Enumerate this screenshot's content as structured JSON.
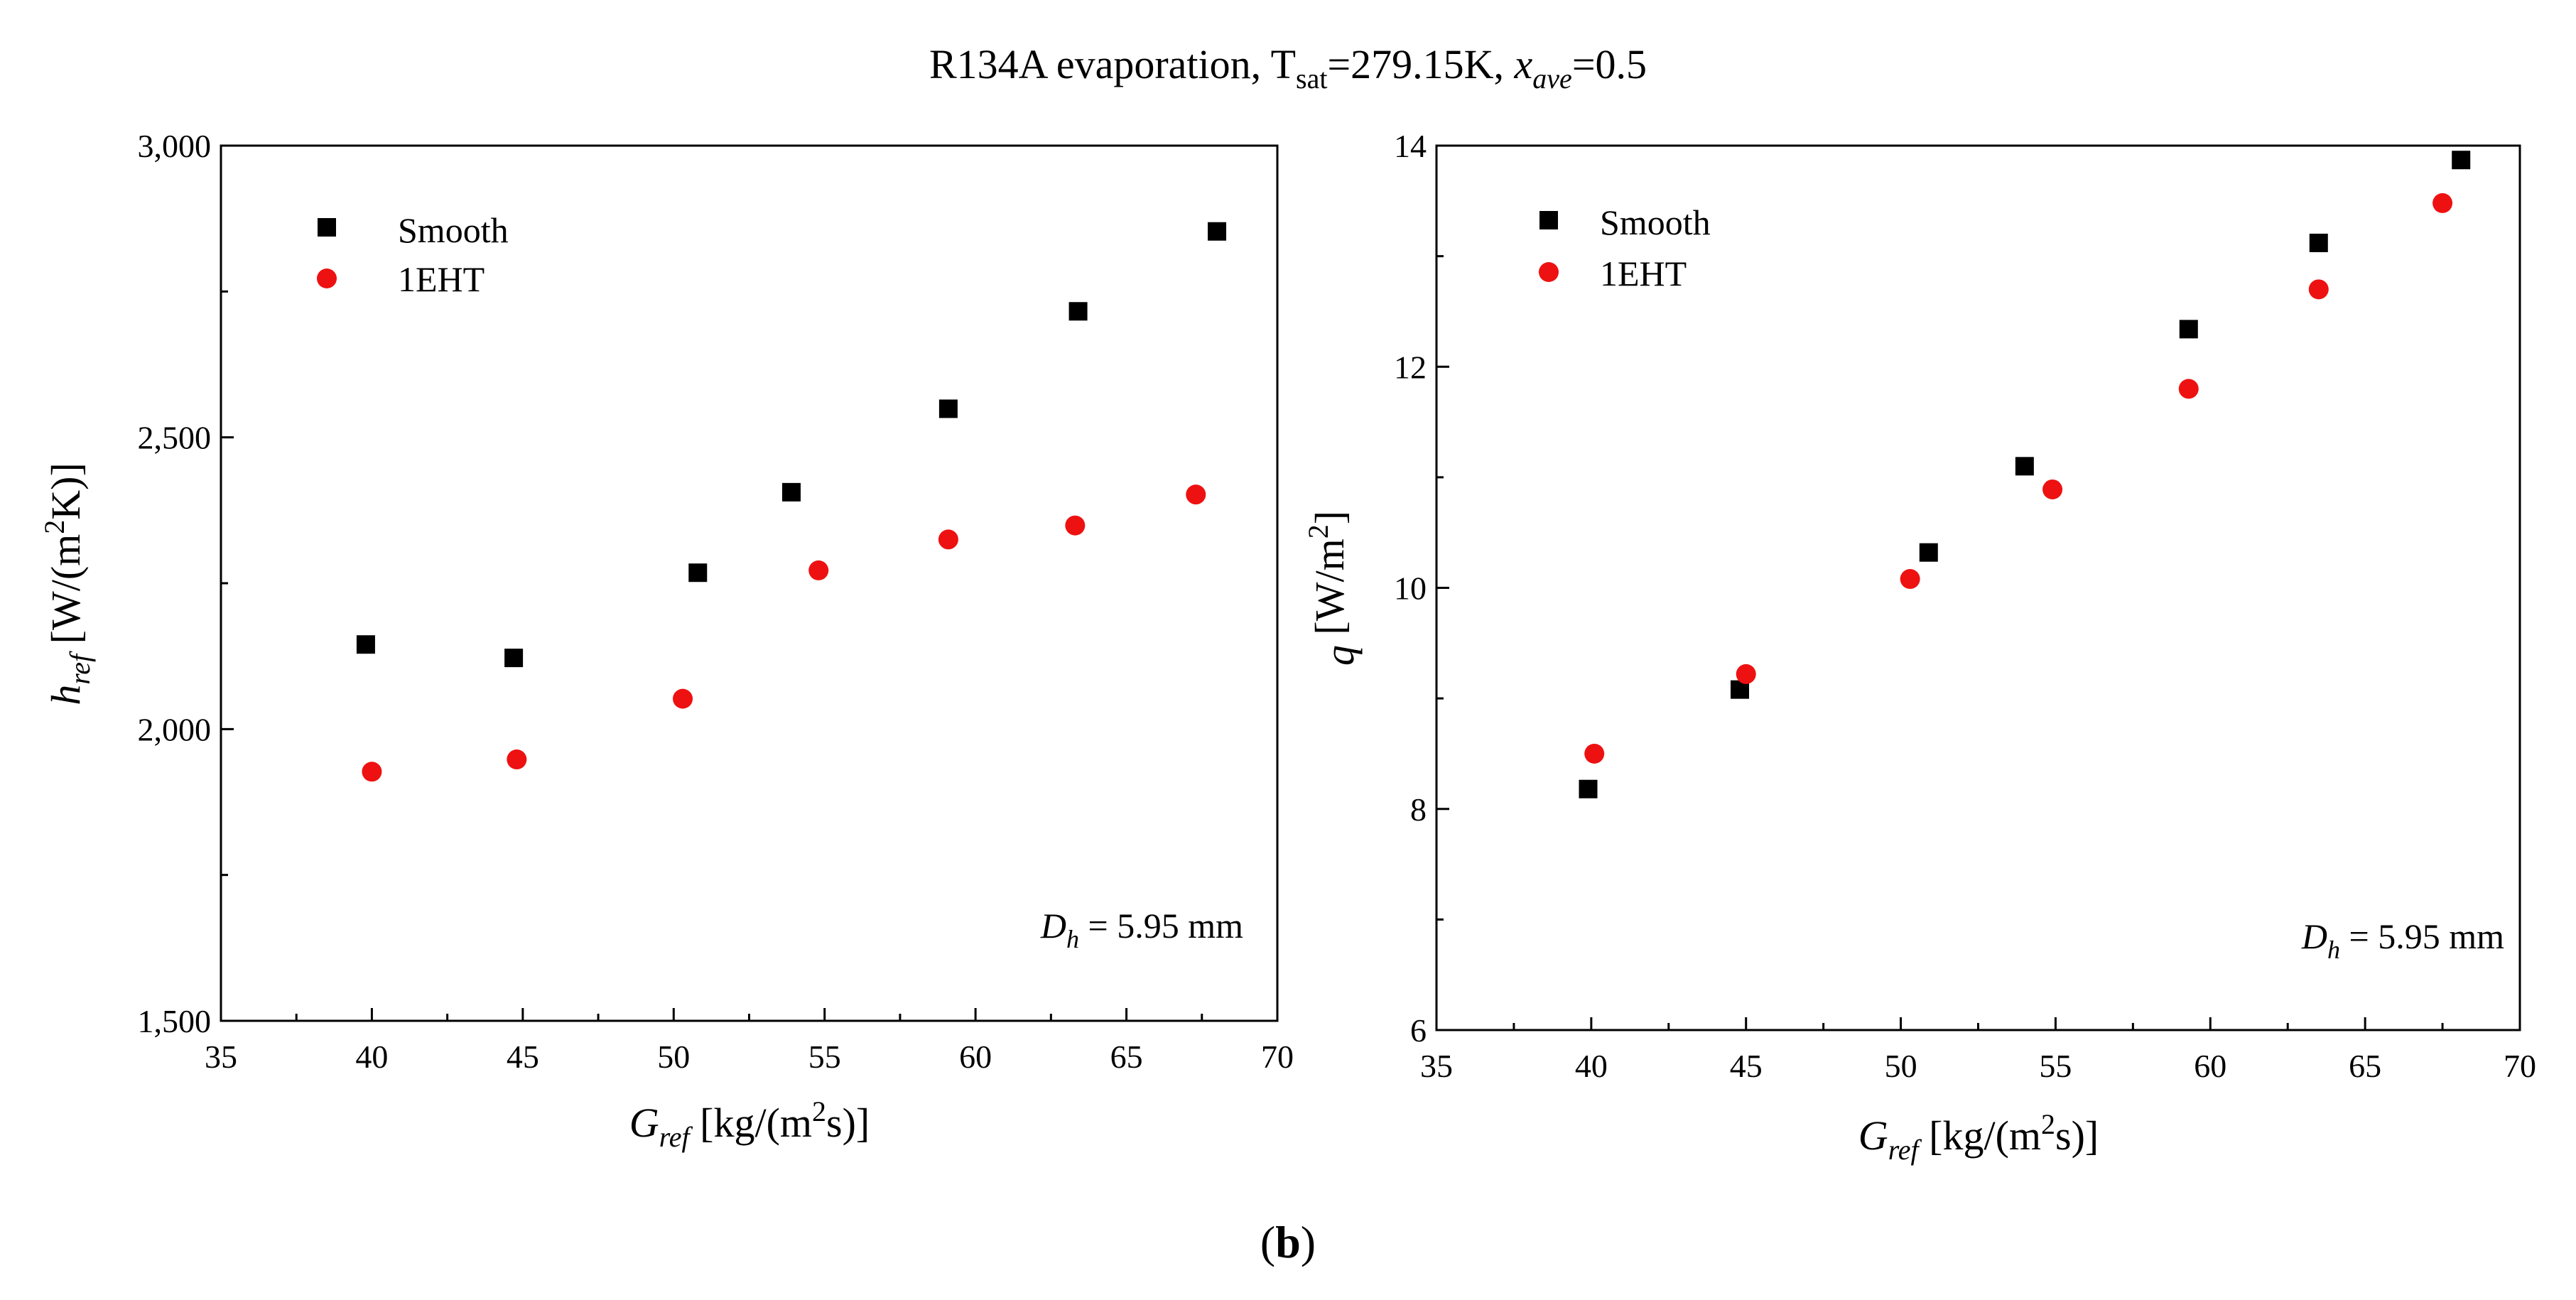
{
  "figure": {
    "title_main": "R134A evaporation, T",
    "title_tsat_sub": "sat",
    "title_tsat_val": "=279.15K, ",
    "title_x": "x",
    "title_x_sub": "ave",
    "title_x_val": "=0.5",
    "panel_label": "b",
    "panel_label_open": "(",
    "panel_label_close": ")"
  },
  "colors": {
    "smooth": "#000000",
    "eht": "#ee1111"
  },
  "chart_data": [
    {
      "type": "scatter",
      "xlim": [
        35,
        70
      ],
      "ylim": [
        1500,
        3000
      ],
      "xticks": [
        35,
        40,
        45,
        50,
        55,
        60,
        65,
        70
      ],
      "xtick_labels": [
        "35",
        "40",
        "45",
        "50",
        "55",
        "60",
        "65",
        "70"
      ],
      "yticks": [
        1500,
        2000,
        2500,
        3000
      ],
      "ytick_labels": [
        "1,500",
        "2,000",
        "2,500",
        "3,000"
      ],
      "xlabel": {
        "sym": "G",
        "sub": "ref",
        "text1": " [kg/(m",
        "sup": "2",
        "text2": "s)]"
      },
      "ylabel": {
        "sym": "h",
        "sub": "ref",
        "text1": " [W/(m",
        "sup": "2",
        "text2": "K)]"
      },
      "annotation": {
        "sym": "D",
        "sub": "h",
        "text": " = 5.95 mm"
      },
      "series": [
        {
          "name": "Smooth",
          "marker": "square",
          "x": [
            39.8,
            44.7,
            50.8,
            53.9,
            59.1,
            63.4,
            68.0
          ],
          "y": [
            2145,
            2122,
            2268,
            2406,
            2549,
            2716,
            2853
          ]
        },
        {
          "name": "1EHT",
          "marker": "circle",
          "x": [
            40.0,
            44.8,
            50.3,
            54.8,
            59.1,
            63.3,
            67.3
          ],
          "y": [
            1927,
            1948,
            2052,
            2272,
            2325,
            2349,
            2402
          ]
        }
      ]
    },
    {
      "type": "scatter",
      "xlim": [
        35,
        70
      ],
      "ylim": [
        6,
        14
      ],
      "xticks": [
        35,
        40,
        45,
        50,
        55,
        60,
        65,
        70
      ],
      "xtick_labels": [
        "35",
        "40",
        "45",
        "50",
        "55",
        "60",
        "65",
        "70"
      ],
      "yticks": [
        6,
        8,
        10,
        12,
        14
      ],
      "ytick_labels": [
        "6",
        "8",
        "10",
        "12",
        "14"
      ],
      "xlabel": {
        "sym": "G",
        "sub": "ref",
        "text1": " [kg/(m",
        "sup": "2",
        "text2": "s)]"
      },
      "ylabel": {
        "sym": "q",
        "sub": "",
        "text1": " [W/m",
        "sup": "2",
        "text2": "]"
      },
      "annotation": {
        "sym": "D",
        "sub": "h",
        "text": " = 5.95 mm"
      },
      "series": [
        {
          "name": "Smooth",
          "marker": "square",
          "x": [
            39.9,
            44.8,
            50.9,
            54.0,
            59.3,
            63.5,
            68.1
          ],
          "y": [
            8.18,
            9.08,
            10.32,
            11.1,
            12.34,
            13.12,
            13.87
          ]
        },
        {
          "name": "1EHT",
          "marker": "circle",
          "x": [
            40.1,
            45.0,
            50.3,
            54.9,
            59.3,
            63.5,
            67.5
          ],
          "y": [
            8.5,
            9.22,
            10.08,
            10.89,
            11.8,
            12.7,
            13.48
          ]
        }
      ]
    }
  ]
}
